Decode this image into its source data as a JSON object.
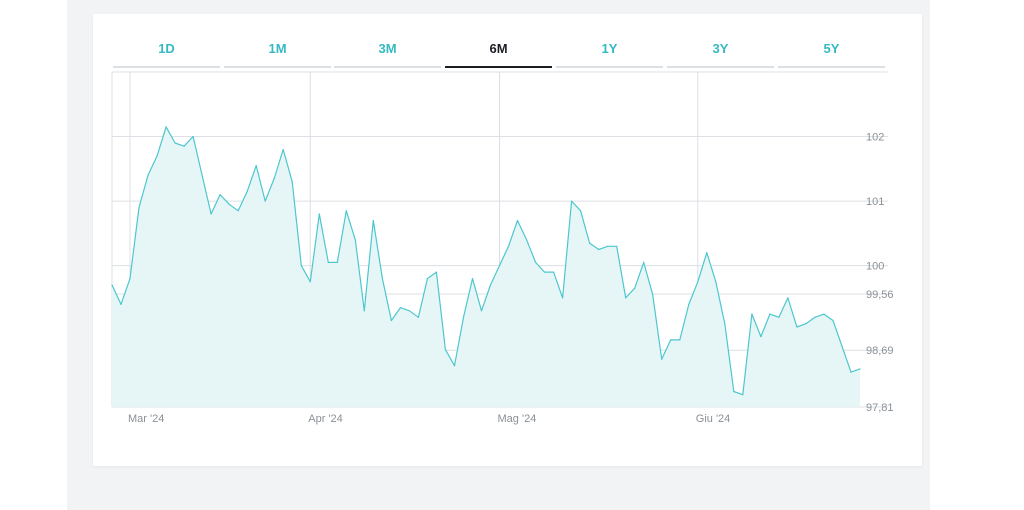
{
  "tabs": [
    {
      "label": "1D",
      "active": false
    },
    {
      "label": "1M",
      "active": false
    },
    {
      "label": "3M",
      "active": false
    },
    {
      "label": "6M",
      "active": true
    },
    {
      "label": "1Y",
      "active": false
    },
    {
      "label": "3Y",
      "active": false
    },
    {
      "label": "5Y",
      "active": false
    }
  ],
  "colors": {
    "accent": "#35b9c2",
    "line": "#4cc7cd",
    "fill": "#e6f6f7",
    "grid": "#dcdfe3",
    "active_tab": "#1b1f24"
  },
  "chart_data": {
    "type": "area",
    "ylim": [
      97.81,
      103.0
    ],
    "y_ticks": [
      {
        "value": 102,
        "label": "102"
      },
      {
        "value": 101,
        "label": "101"
      },
      {
        "value": 100,
        "label": "100"
      },
      {
        "value": 99.56,
        "label": "99,56"
      },
      {
        "value": 98.69,
        "label": "98,69"
      },
      {
        "value": 97.81,
        "label": "97,81"
      }
    ],
    "x_ticks": [
      {
        "index": 2,
        "label": "Mar '24"
      },
      {
        "index": 22,
        "label": "Apr '24"
      },
      {
        "index": 43,
        "label": "Mag '24"
      },
      {
        "index": 65,
        "label": "Giu '24"
      }
    ],
    "grid": true,
    "series": [
      {
        "values": [
          99.7,
          99.4,
          99.8,
          100.9,
          101.4,
          101.7,
          102.15,
          101.9,
          101.85,
          102.0,
          101.4,
          100.8,
          101.1,
          100.95,
          100.85,
          101.15,
          101.55,
          101.0,
          101.35,
          101.8,
          101.3,
          100.0,
          99.75,
          100.8,
          100.05,
          100.05,
          100.85,
          100.4,
          99.3,
          100.7,
          99.8,
          99.15,
          99.35,
          99.3,
          99.2,
          99.8,
          99.9,
          98.7,
          98.45,
          99.2,
          99.8,
          99.3,
          99.7,
          100.0,
          100.3,
          100.7,
          100.4,
          100.05,
          99.9,
          99.9,
          99.5,
          101.0,
          100.85,
          100.35,
          100.25,
          100.3,
          100.3,
          99.5,
          99.65,
          100.05,
          99.55,
          98.55,
          98.85,
          98.85,
          99.4,
          99.75,
          100.2,
          99.75,
          99.1,
          98.05,
          98.0,
          99.25,
          98.9,
          99.25,
          99.2,
          99.5,
          99.05,
          99.1,
          99.2,
          99.25,
          99.15,
          98.75,
          98.35,
          98.4
        ]
      }
    ]
  }
}
